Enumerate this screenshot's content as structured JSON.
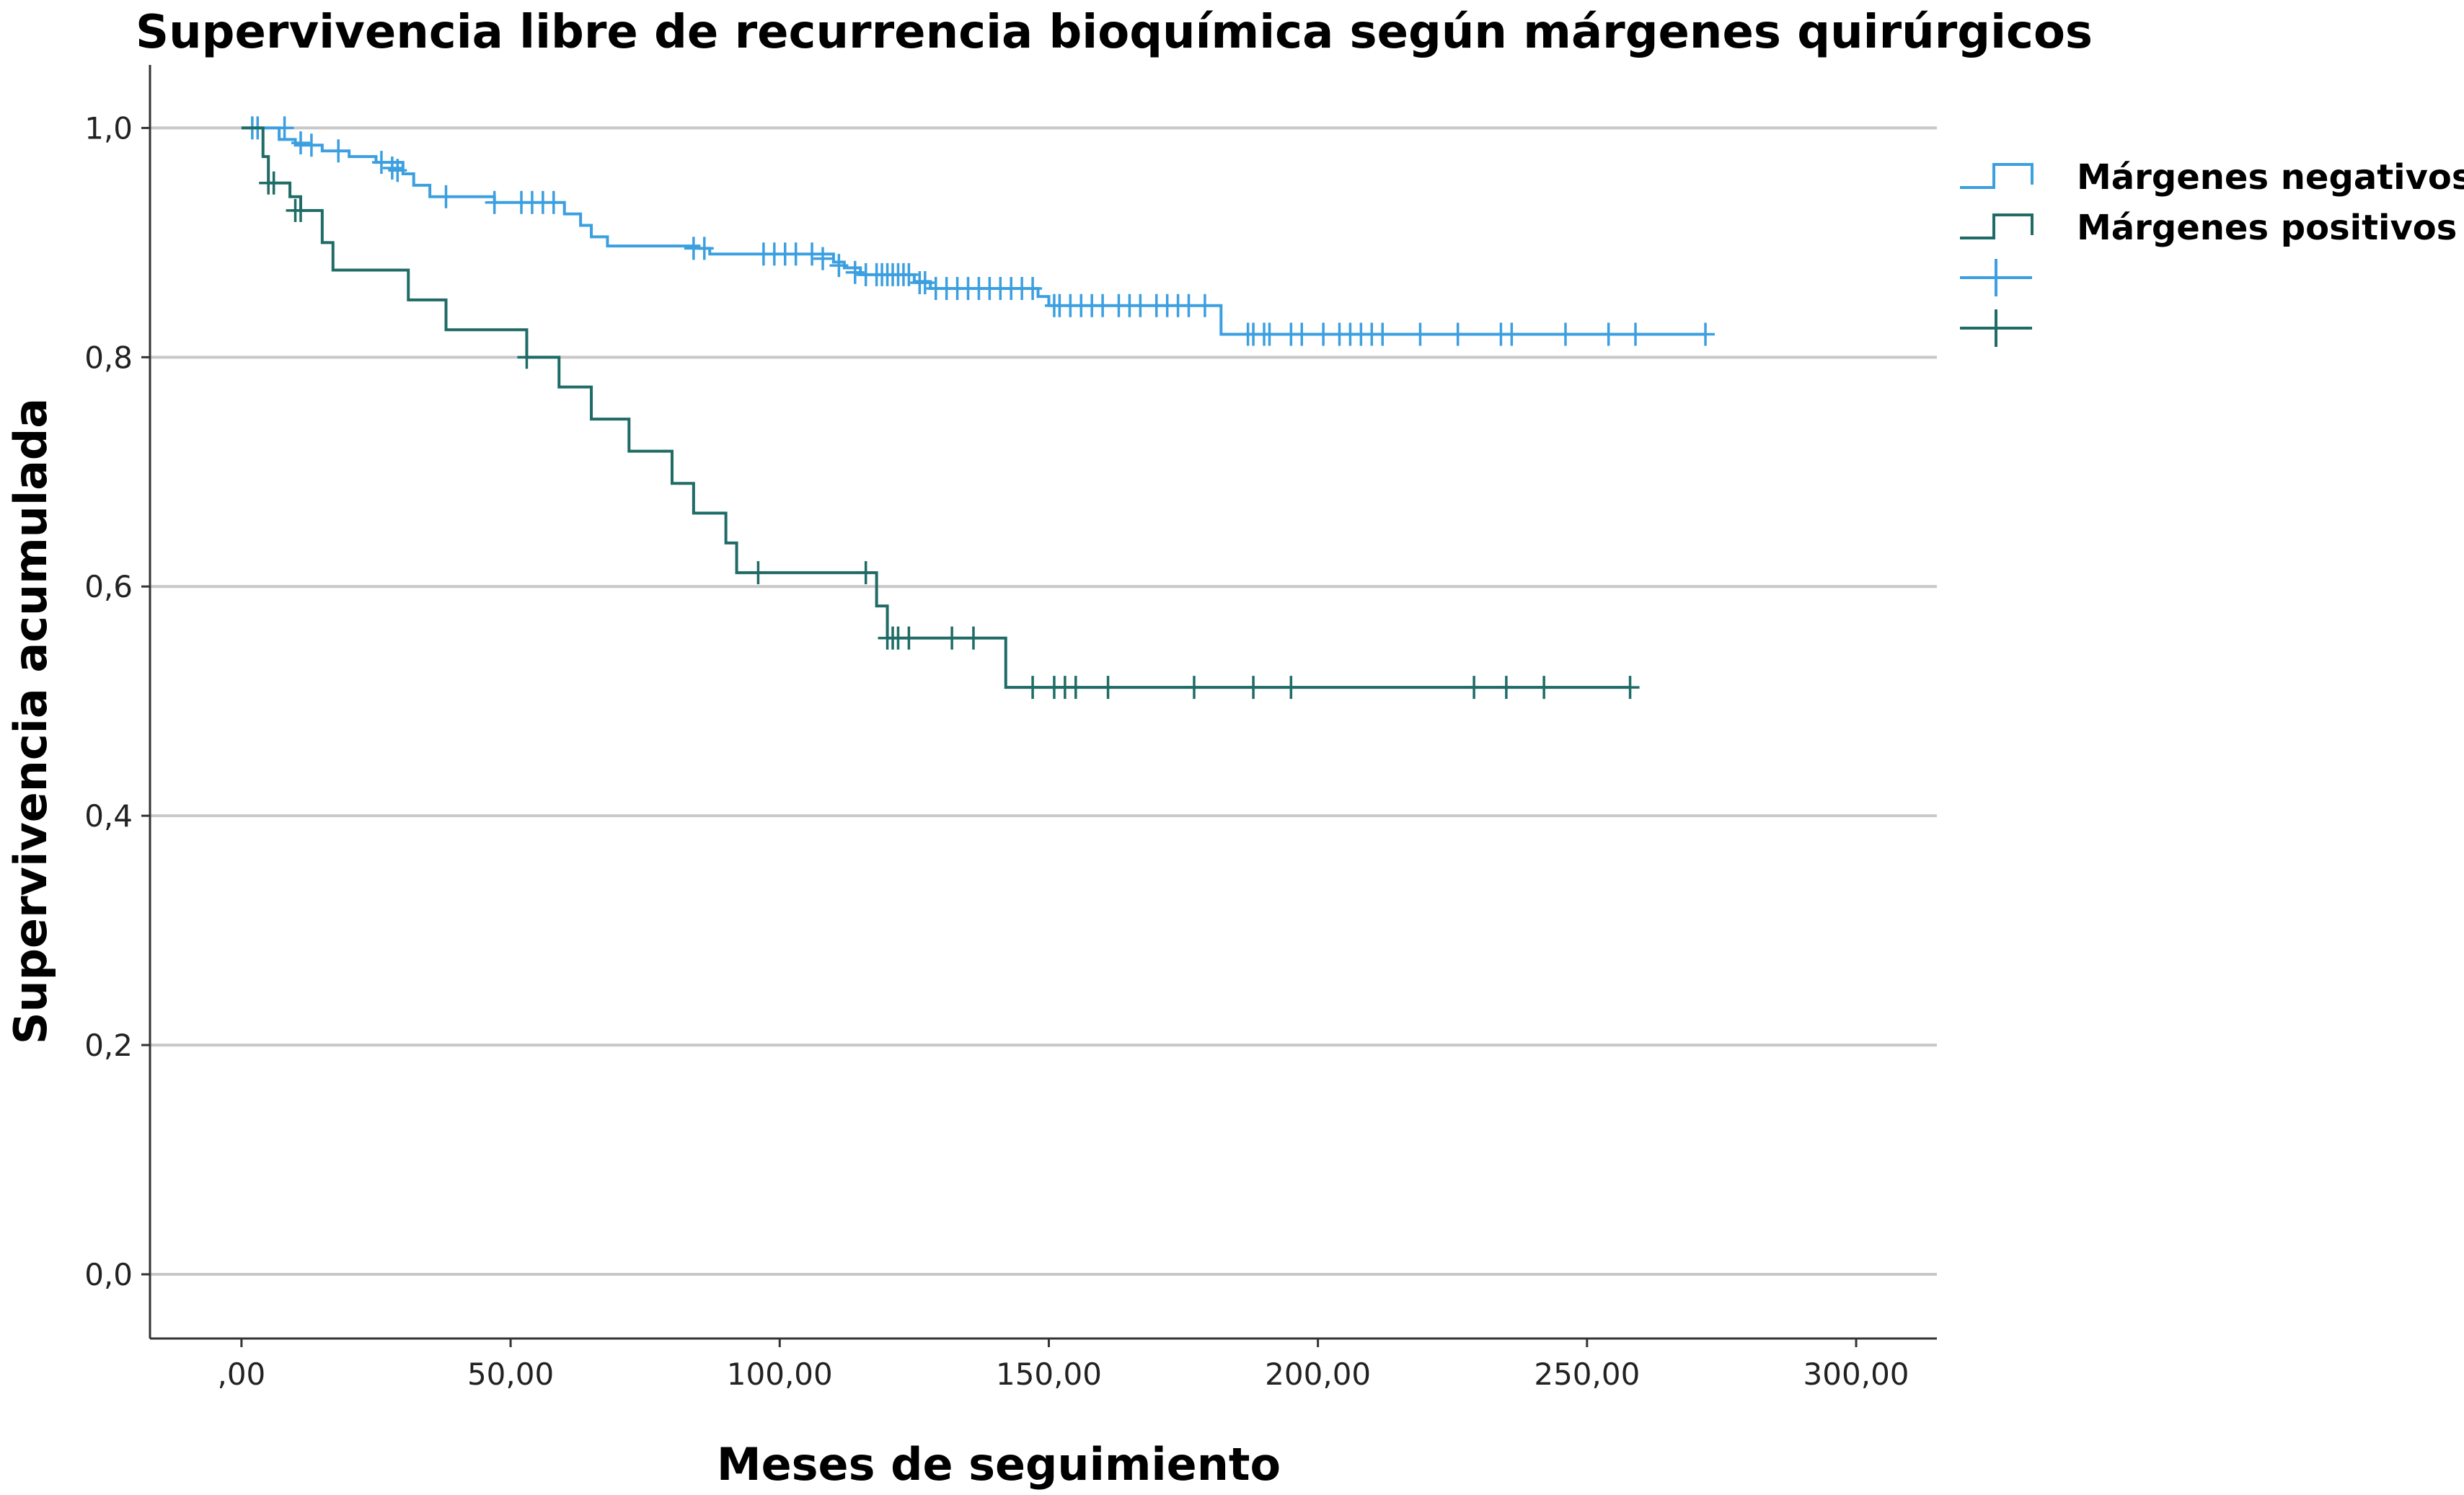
{
  "chart_data": {
    "type": "line",
    "title": "Supervivencia libre de recurrencia bioquímica según márgenes quirúrgicos",
    "xlabel": "Meses de seguimiento",
    "ylabel": "Supervivencia acumulada",
    "xlim": [
      -17,
      315
    ],
    "ylim": [
      -0.056,
      1.055
    ],
    "x_ticks": [
      0,
      50,
      100,
      150,
      200,
      250,
      300
    ],
    "x_tick_labels": [
      ",00",
      "50,00",
      "100,00",
      "150,00",
      "200,00",
      "250,00",
      "300,00"
    ],
    "y_ticks": [
      0,
      0.2,
      0.4,
      0.6,
      0.8,
      1.0
    ],
    "y_tick_labels": [
      "0,0",
      "0,2",
      "0,4",
      "0,6",
      "0,8",
      "1,0"
    ],
    "grid": "horizontal",
    "legend_position": "right",
    "legend": [
      "Márgenes negativos",
      "Márgenes positivos"
    ],
    "series": [
      {
        "name": "Márgenes negativos",
        "color": "#3b9fe0",
        "steps": [
          [
            0,
            1.0
          ],
          [
            7,
            0.99
          ],
          [
            10,
            0.985
          ],
          [
            15,
            0.98
          ],
          [
            20,
            0.975
          ],
          [
            25,
            0.97
          ],
          [
            30,
            0.96
          ],
          [
            32,
            0.95
          ],
          [
            35,
            0.94
          ],
          [
            47,
            0.935
          ],
          [
            60,
            0.925
          ],
          [
            63,
            0.915
          ],
          [
            65,
            0.905
          ],
          [
            68,
            0.897
          ],
          [
            85,
            0.895
          ],
          [
            87,
            0.89
          ],
          [
            110,
            0.883
          ],
          [
            112,
            0.878
          ],
          [
            115,
            0.872
          ],
          [
            125,
            0.866
          ],
          [
            128,
            0.86
          ],
          [
            148,
            0.853
          ],
          [
            150,
            0.845
          ],
          [
            182,
            0.82
          ],
          [
            272,
            0.82
          ]
        ],
        "censored": [
          [
            2,
            1.0
          ],
          [
            3,
            1.0
          ],
          [
            8,
            1.0
          ],
          [
            11,
            0.987
          ],
          [
            13,
            0.985
          ],
          [
            18,
            0.98
          ],
          [
            26,
            0.97
          ],
          [
            28,
            0.965
          ],
          [
            29,
            0.963
          ],
          [
            38,
            0.94
          ],
          [
            47,
            0.935
          ],
          [
            52,
            0.935
          ],
          [
            54,
            0.935
          ],
          [
            56,
            0.935
          ],
          [
            58,
            0.935
          ],
          [
            84,
            0.895
          ],
          [
            86,
            0.895
          ],
          [
            97,
            0.89
          ],
          [
            99,
            0.89
          ],
          [
            101,
            0.89
          ],
          [
            103,
            0.89
          ],
          [
            106,
            0.89
          ],
          [
            108,
            0.886
          ],
          [
            111,
            0.88
          ],
          [
            114,
            0.874
          ],
          [
            116,
            0.872
          ],
          [
            118,
            0.872
          ],
          [
            119,
            0.872
          ],
          [
            120,
            0.872
          ],
          [
            121,
            0.872
          ],
          [
            122,
            0.872
          ],
          [
            123,
            0.872
          ],
          [
            124,
            0.872
          ],
          [
            126,
            0.865
          ],
          [
            127,
            0.865
          ],
          [
            129,
            0.86
          ],
          [
            131,
            0.86
          ],
          [
            133,
            0.86
          ],
          [
            135,
            0.86
          ],
          [
            137,
            0.86
          ],
          [
            139,
            0.86
          ],
          [
            141,
            0.86
          ],
          [
            143,
            0.86
          ],
          [
            145,
            0.86
          ],
          [
            147,
            0.86
          ],
          [
            151,
            0.845
          ],
          [
            152,
            0.845
          ],
          [
            154,
            0.845
          ],
          [
            156,
            0.845
          ],
          [
            158,
            0.845
          ],
          [
            160,
            0.845
          ],
          [
            163,
            0.845
          ],
          [
            165,
            0.845
          ],
          [
            167,
            0.845
          ],
          [
            170,
            0.845
          ],
          [
            172,
            0.845
          ],
          [
            174,
            0.845
          ],
          [
            176,
            0.845
          ],
          [
            179,
            0.845
          ],
          [
            187,
            0.82
          ],
          [
            188,
            0.82
          ],
          [
            190,
            0.82
          ],
          [
            191,
            0.82
          ],
          [
            195,
            0.82
          ],
          [
            197,
            0.82
          ],
          [
            201,
            0.82
          ],
          [
            204,
            0.82
          ],
          [
            206,
            0.82
          ],
          [
            208,
            0.82
          ],
          [
            210,
            0.82
          ],
          [
            212,
            0.82
          ],
          [
            219,
            0.82
          ],
          [
            226,
            0.82
          ],
          [
            234,
            0.82
          ],
          [
            236,
            0.82
          ],
          [
            246,
            0.82
          ],
          [
            254,
            0.82
          ],
          [
            259,
            0.82
          ],
          [
            272,
            0.82
          ]
        ]
      },
      {
        "name": "Márgenes positivos",
        "color": "#1f6b66",
        "steps": [
          [
            0,
            1.0
          ],
          [
            4,
            0.975
          ],
          [
            5,
            0.952
          ],
          [
            9,
            0.94
          ],
          [
            11,
            0.928
          ],
          [
            15,
            0.9
          ],
          [
            17,
            0.876
          ],
          [
            31,
            0.85
          ],
          [
            38,
            0.824
          ],
          [
            53,
            0.8
          ],
          [
            59,
            0.774
          ],
          [
            65,
            0.746
          ],
          [
            72,
            0.718
          ],
          [
            80,
            0.69
          ],
          [
            84,
            0.664
          ],
          [
            90,
            0.638
          ],
          [
            92,
            0.612
          ],
          [
            118,
            0.583
          ],
          [
            120,
            0.555
          ],
          [
            142,
            0.512
          ],
          [
            258,
            0.512
          ]
        ],
        "censored": [
          [
            5,
            0.952
          ],
          [
            6,
            0.952
          ],
          [
            10,
            0.928
          ],
          [
            11,
            0.928
          ],
          [
            53,
            0.8
          ],
          [
            96,
            0.612
          ],
          [
            116,
            0.612
          ],
          [
            120,
            0.555
          ],
          [
            121,
            0.555
          ],
          [
            122,
            0.555
          ],
          [
            124,
            0.555
          ],
          [
            132,
            0.555
          ],
          [
            136,
            0.555
          ],
          [
            147,
            0.512
          ],
          [
            151,
            0.512
          ],
          [
            153,
            0.512
          ],
          [
            155,
            0.512
          ],
          [
            161,
            0.512
          ],
          [
            177,
            0.512
          ],
          [
            188,
            0.512
          ],
          [
            195,
            0.512
          ],
          [
            229,
            0.512
          ],
          [
            235,
            0.512
          ],
          [
            242,
            0.512
          ],
          [
            258,
            0.512
          ]
        ]
      }
    ]
  }
}
